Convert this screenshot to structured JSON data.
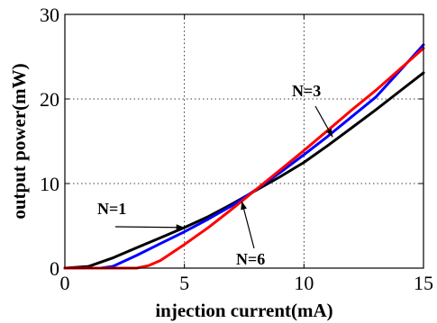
{
  "chart_data": {
    "type": "line",
    "xlabel": "injection current(mA)",
    "ylabel": "output power(mW)",
    "xlim": [
      0,
      15
    ],
    "ylim": [
      0,
      30
    ],
    "xticks": [
      "0",
      "5",
      "10",
      "15"
    ],
    "yticks": [
      "0",
      "10",
      "20",
      "30"
    ],
    "grid": true,
    "series": [
      {
        "name": "N=1",
        "color": "#000000",
        "x": [
          0,
          1,
          2,
          3,
          4,
          5,
          6,
          7,
          8,
          9,
          10,
          11,
          12,
          13,
          14,
          15
        ],
        "y": [
          0,
          0.2,
          1.2,
          2.4,
          3.6,
          4.8,
          6.1,
          7.6,
          9.2,
          10.8,
          12.5,
          14.5,
          16.6,
          18.7,
          20.9,
          23.1
        ]
      },
      {
        "name": "",
        "color": "#0000ff",
        "x": [
          0,
          1.5,
          2,
          3,
          4,
          5,
          6,
          7,
          8,
          9,
          10,
          11,
          12,
          13,
          14,
          15
        ],
        "y": [
          0,
          0,
          0.2,
          1.5,
          2.9,
          4.3,
          5.8,
          7.4,
          9.3,
          11.3,
          13.4,
          15.6,
          17.9,
          20.2,
          23.3,
          26.4
        ]
      },
      {
        "name": "N=6",
        "color": "#ff0000",
        "x": [
          0,
          3,
          3.5,
          4,
          5,
          6,
          7,
          8,
          9,
          10,
          11,
          12,
          13,
          14,
          15
        ],
        "y": [
          0,
          0,
          0.3,
          0.9,
          2.8,
          4.8,
          7.0,
          9.3,
          11.6,
          13.9,
          16.3,
          18.7,
          21.0,
          23.5,
          26.0
        ]
      }
    ],
    "annotations": [
      {
        "text": "N=1",
        "target": [
          5.0,
          4.8
        ]
      },
      {
        "text": "N=3",
        "target": [
          11.2,
          15.5
        ]
      },
      {
        "text": "N=6",
        "target": [
          7.4,
          7.9
        ]
      }
    ]
  }
}
